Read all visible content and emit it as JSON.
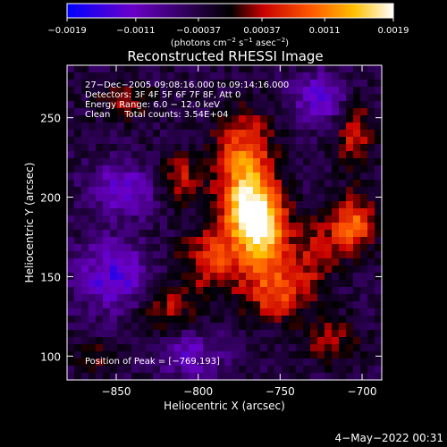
{
  "chart_data": {
    "type": "heatmap",
    "title": "Reconstructed RHESSI Image",
    "xlabel": "Heliocentric X (arcsec)",
    "ylabel": "Heliocentric Y (arcsec)",
    "xlim": [
      -880,
      -688
    ],
    "ylim": [
      85,
      283
    ],
    "x_ticks": [
      -850,
      -800,
      -750,
      -700
    ],
    "x_tick_labels": [
      "−850",
      "−800",
      "−750",
      "−700"
    ],
    "y_ticks": [
      100,
      150,
      200,
      250
    ],
    "y_tick_labels": [
      "100",
      "150",
      "200",
      "250"
    ],
    "colorbar": {
      "range": [
        -0.0019,
        0.0019
      ],
      "ticks": [
        -0.0019,
        -0.0011,
        -0.00037,
        0.00037,
        0.0011,
        0.0019
      ],
      "tick_labels": [
        "−0.0019",
        "−0.0011",
        "−0.00037",
        "0.00037",
        "0.0011",
        "0.0019"
      ],
      "unit_parts": [
        "(photons cm",
        "−2",
        " s",
        "−1",
        " asec",
        "−2",
        ")"
      ],
      "colors": [
        "#0000ff",
        "#6a00c8",
        "#000000",
        "#c80000",
        "#ff5a00",
        "#ffc000",
        "#ffffff"
      ]
    },
    "annotations": [
      "27−Dec−2005 09:08:16.000 to 09:14:16.000",
      "Detectors: 3F 4F 5F 6F 7F 8F, Att 0",
      "Energy Range: 6.0 − 12.0 keV",
      "Clean     Total counts: 3.54E+04"
    ],
    "peak_label": "Position of Peak = [−769,193]",
    "peak": [
      -769,
      193
    ],
    "grid": false,
    "sources": [
      {
        "x": -769,
        "y": 193,
        "amp": 0.0019,
        "sx": 12,
        "sy": 16
      },
      {
        "x": -760,
        "y": 175,
        "amp": 0.0014,
        "sx": 10,
        "sy": 16
      },
      {
        "x": -752,
        "y": 140,
        "amp": 0.0011,
        "sx": 14,
        "sy": 12
      },
      {
        "x": -790,
        "y": 160,
        "amp": 0.001,
        "sx": 14,
        "sy": 14
      },
      {
        "x": -772,
        "y": 228,
        "amp": 0.0012,
        "sx": 12,
        "sy": 18
      },
      {
        "x": -812,
        "y": 212,
        "amp": 0.0008,
        "sx": 10,
        "sy": 10
      },
      {
        "x": -706,
        "y": 183,
        "amp": 0.0013,
        "sx": 10,
        "sy": 12
      },
      {
        "x": -730,
        "y": 165,
        "amp": 0.0007,
        "sx": 10,
        "sy": 14
      },
      {
        "x": -845,
        "y": 260,
        "amp": 0.0006,
        "sx": 12,
        "sy": 8
      },
      {
        "x": -820,
        "y": 130,
        "amp": 0.0007,
        "sx": 12,
        "sy": 10
      },
      {
        "x": -705,
        "y": 240,
        "amp": 0.0008,
        "sx": 8,
        "sy": 16
      },
      {
        "x": -720,
        "y": 110,
        "amp": 0.0006,
        "sx": 12,
        "sy": 10
      },
      {
        "x": -860,
        "y": 100,
        "amp": 0.0004,
        "sx": 10,
        "sy": 8
      },
      {
        "x": -852,
        "y": 150,
        "amp": -0.001,
        "sx": 16,
        "sy": 16
      },
      {
        "x": -845,
        "y": 205,
        "amp": -0.0009,
        "sx": 14,
        "sy": 12
      },
      {
        "x": -725,
        "y": 262,
        "amp": -0.0009,
        "sx": 12,
        "sy": 12
      },
      {
        "x": -805,
        "y": 100,
        "amp": -0.0007,
        "sx": 16,
        "sy": 10
      }
    ]
  },
  "footer": {
    "date": "4−May−2022 00:31"
  }
}
